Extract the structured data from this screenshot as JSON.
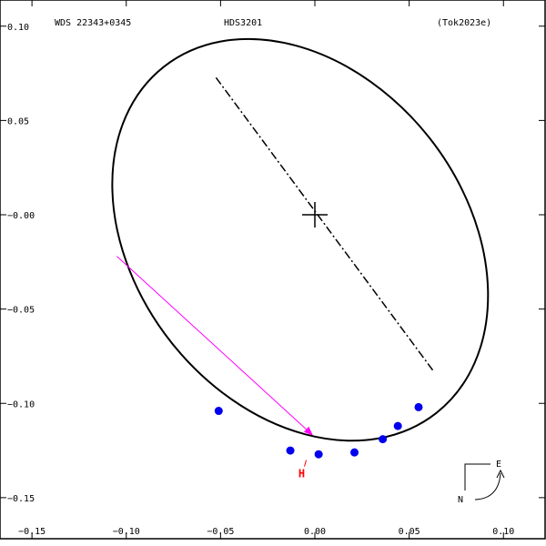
{
  "header": {
    "left": "WDS 22343+0345",
    "center": "HDS3201",
    "right": "(Tok2023e)"
  },
  "compass": {
    "east": "E",
    "north": "N"
  },
  "chart_data": {
    "type": "scatter",
    "xlim": [
      -0.15,
      0.12
    ],
    "ylim": [
      -0.17,
      0.1
    ],
    "xticks": [
      {
        "v": -0.15,
        "label": "−0.15"
      },
      {
        "v": -0.1,
        "label": "−0.10"
      },
      {
        "v": -0.05,
        "label": "−0.05"
      },
      {
        "v": 0.0,
        "label": "0.00"
      },
      {
        "v": 0.05,
        "label": "0.05"
      },
      {
        "v": 0.1,
        "label": "0.10"
      }
    ],
    "yticks": [
      {
        "v": 0.1,
        "label": "0.10"
      },
      {
        "v": 0.05,
        "label": "0.05"
      },
      {
        "v": 0.0,
        "label": "−0.00"
      },
      {
        "v": -0.05,
        "label": "−0.05"
      },
      {
        "v": -0.1,
        "label": "−0.10"
      },
      {
        "v": -0.15,
        "label": "−0.15"
      }
    ],
    "primary": [
      0,
      0
    ],
    "orbit": {
      "center": [
        -0.0078,
        -0.0133
      ],
      "semi_axes": [
        0.0873,
        0.1168
      ],
      "rotation_deg": -38.2
    },
    "line_of_nodes": {
      "from": [
        -0.0524,
        0.0727
      ],
      "to": [
        0.0625,
        -0.0824
      ]
    },
    "observations": [
      {
        "x": -0.051,
        "y": -0.104
      },
      {
        "x": -0.013,
        "y": -0.125
      },
      {
        "x": 0.002,
        "y": -0.127
      },
      {
        "x": 0.021,
        "y": -0.126
      },
      {
        "x": 0.036,
        "y": -0.119
      },
      {
        "x": 0.044,
        "y": -0.112
      },
      {
        "x": 0.055,
        "y": -0.102
      }
    ],
    "motion_arrow": {
      "from": [
        -0.105,
        -0.022
      ],
      "to": [
        -0.001,
        -0.117
      ]
    },
    "annotations": [
      {
        "text": "H",
        "x": -0.007,
        "y": -0.133
      }
    ],
    "colors": {
      "orbit": "#000000",
      "observation": "#0000ee",
      "arrow": "#ff00ff",
      "annotation": "#ff0000"
    }
  }
}
